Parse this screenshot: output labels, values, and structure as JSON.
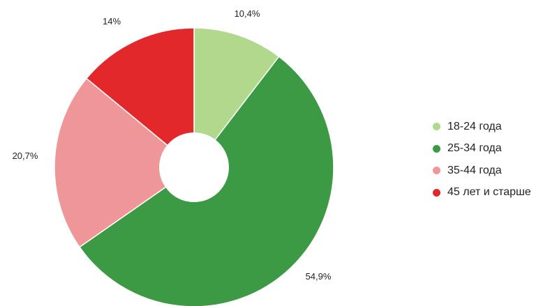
{
  "chart_data": {
    "type": "pie",
    "hole": true,
    "legend_position": "right",
    "slices": [
      {
        "label": "18-24 года",
        "value": 10.4,
        "value_label": "10,4%",
        "color": "#b1d98b"
      },
      {
        "label": "25-34 года",
        "value": 54.9,
        "value_label": "54,9%",
        "color": "#3c9a44"
      },
      {
        "label": "35-44 года",
        "value": 20.7,
        "value_label": "20,7%",
        "color": "#ef9698"
      },
      {
        "label": "45 лет и старше",
        "value": 14,
        "value_label": "14%",
        "color": "#e3282c"
      }
    ]
  }
}
